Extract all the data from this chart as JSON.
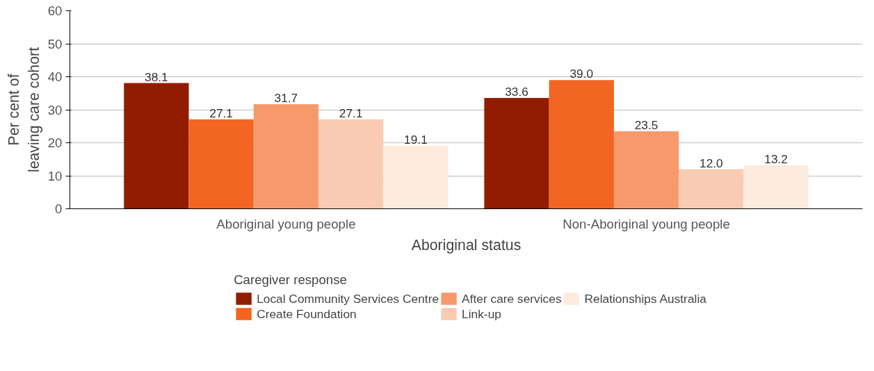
{
  "chart_data": {
    "type": "bar",
    "xlabel": "Aboriginal status",
    "ylabel": "Per cent of\nleaving care cohort",
    "legend_title": "Caregiver response",
    "categories": [
      "Aboriginal young people",
      "Non-Aboriginal young people"
    ],
    "series": [
      {
        "name": "Local Community Services Centre",
        "color": "#921c00",
        "values": [
          38.1,
          33.6
        ],
        "value_labels": [
          "38.1",
          "33.6"
        ]
      },
      {
        "name": "Create Foundation",
        "color": "#f26522",
        "values": [
          27.1,
          39.0
        ],
        "value_labels": [
          "27.1",
          "39.0"
        ]
      },
      {
        "name": "After care services",
        "color": "#f69a6b",
        "values": [
          31.7,
          23.5
        ],
        "value_labels": [
          "31.7",
          "23.5"
        ]
      },
      {
        "name": "Link-up",
        "color": "#f9cbb2",
        "values": [
          27.1,
          12.0
        ],
        "value_labels": [
          "27.1",
          "12.0"
        ]
      },
      {
        "name": "Relationships Australia",
        "color": "#fdebde",
        "values": [
          19.1,
          13.2
        ],
        "value_labels": [
          "19.1",
          "13.2"
        ]
      }
    ],
    "ylim": [
      0,
      60
    ],
    "yticks": [
      0,
      10,
      20,
      30,
      40,
      50,
      60
    ],
    "grid": "y",
    "legend": "bottom"
  }
}
